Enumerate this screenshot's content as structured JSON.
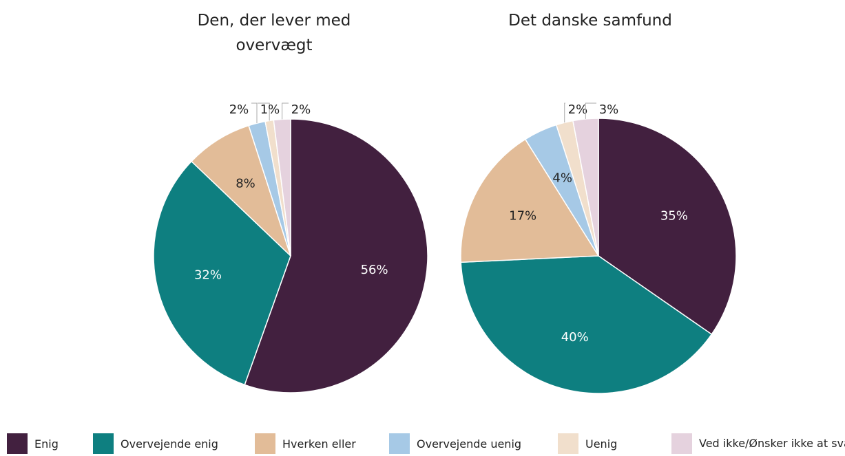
{
  "chart_data": [
    {
      "type": "pie",
      "title": "Den, der lever med overvægt",
      "categories": [
        "Enig",
        "Overvejende enig",
        "Hverken eller",
        "Overvejende uenig",
        "Uenig",
        "Ved ikke/Ønsker ikke at svare"
      ],
      "values": [
        56,
        32,
        8,
        2,
        1,
        2
      ],
      "value_labels": [
        "56%",
        "32%",
        "8%",
        "2%",
        "1%",
        "2%"
      ],
      "colors": [
        "#42203f",
        "#0e7f80",
        "#e2bc98",
        "#a6c9e6",
        "#f1dfcc",
        "#e5d2de"
      ]
    },
    {
      "type": "pie",
      "title": "Det danske samfund",
      "categories": [
        "Enig",
        "Overvejende enig",
        "Hverken eller",
        "Overvejende uenig",
        "Uenig",
        "Ved ikke/Ønsker ikke at svare"
      ],
      "values": [
        35,
        40,
        17,
        4,
        2,
        3
      ],
      "value_labels": [
        "35%",
        "40%",
        "17%",
        "4%",
        "2%",
        "3%"
      ],
      "colors": [
        "#42203f",
        "#0e7f80",
        "#e2bc98",
        "#a6c9e6",
        "#f1dfcc",
        "#e5d2de"
      ]
    }
  ]
}
